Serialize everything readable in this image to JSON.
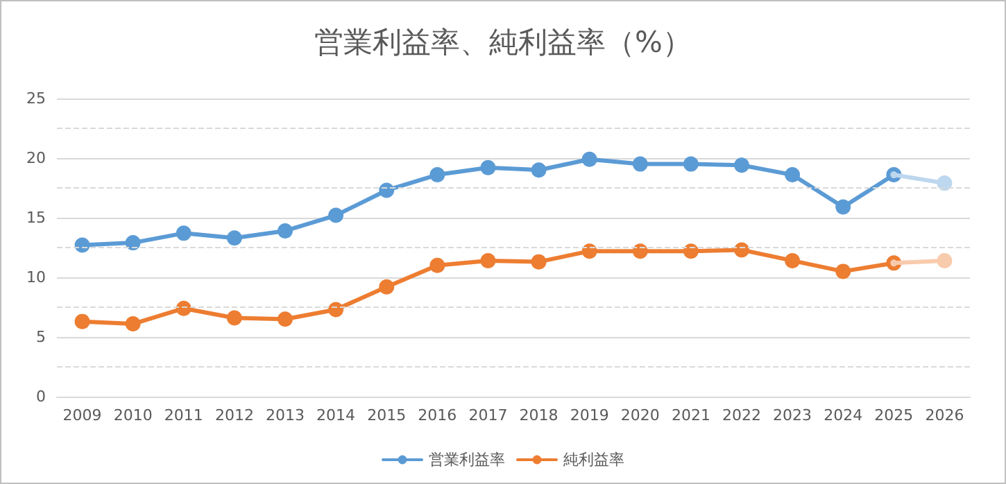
{
  "chart_data": {
    "type": "line",
    "title": "営業利益率、純利益率（%）",
    "categories": [
      "2009",
      "2010",
      "2011",
      "2012",
      "2013",
      "2014",
      "2015",
      "2016",
      "2017",
      "2018",
      "2019",
      "2020",
      "2021",
      "2022",
      "2023",
      "2024",
      "2025",
      "2026"
    ],
    "series": [
      {
        "name": "営業利益率",
        "color": "#5b9bd5",
        "values": [
          12.7,
          12.9,
          13.7,
          13.3,
          13.9,
          15.2,
          17.3,
          18.6,
          19.2,
          19.0,
          19.9,
          19.5,
          19.5,
          19.4,
          18.6,
          15.9,
          18.6,
          null
        ]
      },
      {
        "name": "純利益率",
        "color": "#ed7d31",
        "values": [
          6.3,
          6.1,
          7.4,
          6.6,
          6.5,
          7.3,
          9.2,
          11.0,
          11.4,
          11.3,
          12.2,
          12.2,
          12.2,
          12.3,
          11.4,
          10.5,
          11.2,
          null
        ]
      },
      {
        "color": "#bdd7ee",
        "values": [
          null,
          null,
          null,
          null,
          null,
          null,
          null,
          null,
          null,
          null,
          null,
          null,
          null,
          null,
          null,
          null,
          18.6,
          17.9
        ]
      },
      {
        "color": "#f8cbad",
        "values": [
          null,
          null,
          null,
          null,
          null,
          null,
          null,
          null,
          null,
          null,
          null,
          null,
          null,
          null,
          null,
          null,
          11.2,
          11.4
        ]
      }
    ],
    "ylim": [
      0,
      25
    ],
    "yticks": [
      0,
      {
        "value": 2.5,
        "label": null
      },
      5,
      {
        "value": 7.5,
        "label": null
      },
      10,
      {
        "value": 12.5,
        "label": null
      },
      15,
      {
        "value": 17.5,
        "label": null
      },
      20,
      {
        "value": 22.5,
        "label": null
      },
      25
    ],
    "grid": "y",
    "legend": "bottom",
    "marker": "circle",
    "line_style": "solid"
  }
}
